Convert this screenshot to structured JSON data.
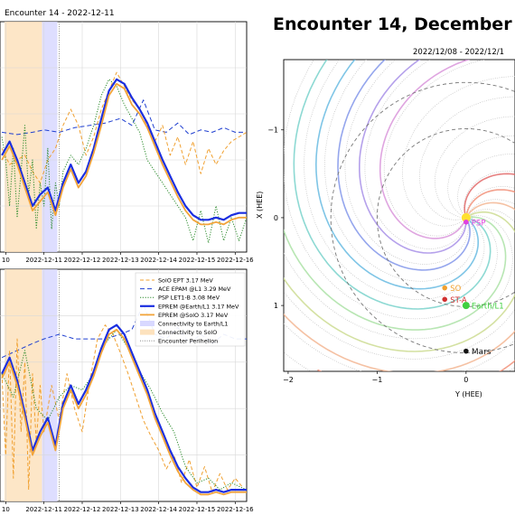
{
  "figure_title": "Encounter 14, December",
  "panel_top": {
    "title": "Encounter 14 - 2022-12-11"
  },
  "orbit": {
    "title": "2022/12/08 - 2022/12/1",
    "xlabel": "Y (HEE)",
    "ylabel": "X (HEE)"
  },
  "colors": {
    "solo": "#f0a030",
    "ace": "#1f3fd0",
    "psp": "#2a8a2a",
    "eprem_earth": "#1a2ee0",
    "eprem_solo": "#f2a43a",
    "conn_earth": "#d8d8ff",
    "conn_solo": "#fde2bd"
  },
  "chart_data": [
    {
      "type": "line",
      "panel": "top",
      "title": "Encounter 14 - 2022-12-11",
      "x_tick_labels": [
        "10",
        "2022-12-11",
        "2022-12-12",
        "2022-12-13",
        "2022-12-14",
        "2022-12-15",
        "2022-12-16"
      ],
      "x_ticks": [
        10.0,
        11.0,
        12.0,
        13.0,
        14.0,
        15.0,
        16.0
      ],
      "xlim": [
        9.85,
        16.3
      ],
      "ylim": [
        0,
        1
      ],
      "grid": true,
      "shaded_regions": [
        {
          "name": "Connectivity to SolO",
          "x": [
            9.97,
            10.95
          ]
        },
        {
          "name": "Connectivity to Earth/L1",
          "x": [
            10.95,
            11.35
          ]
        }
      ],
      "vlines": [
        {
          "name": "Encounter Perihelion",
          "x": 11.4
        }
      ],
      "series": [
        {
          "name": "ACE EPAM @L1 3.29 MeV",
          "style": "dashed",
          "x": [
            9.9,
            10.3,
            10.7,
            11.0,
            11.4,
            11.8,
            12.2,
            12.6,
            13.0,
            13.3,
            13.6,
            13.9,
            14.2,
            14.5,
            14.8,
            15.1,
            15.4,
            15.7,
            16.0,
            16.3
          ],
          "y": [
            0.52,
            0.51,
            0.52,
            0.53,
            0.52,
            0.54,
            0.55,
            0.56,
            0.58,
            0.55,
            0.66,
            0.53,
            0.52,
            0.56,
            0.51,
            0.53,
            0.52,
            0.54,
            0.52,
            0.52
          ]
        },
        {
          "name": "SolO EPT 3.17 MeV",
          "style": "dashed",
          "x": [
            9.9,
            10.1,
            10.3,
            10.5,
            10.7,
            10.9,
            11.1,
            11.3,
            11.5,
            11.7,
            11.9,
            12.1,
            12.3,
            12.5,
            12.7,
            12.9,
            13.1,
            13.3,
            13.5,
            13.7,
            13.9,
            14.1,
            14.3,
            14.5,
            14.7,
            14.9,
            15.1,
            15.3,
            15.5,
            15.7,
            15.9,
            16.1,
            16.3
          ],
          "y": [
            0.45,
            0.38,
            0.4,
            0.42,
            0.35,
            0.3,
            0.4,
            0.45,
            0.55,
            0.62,
            0.55,
            0.42,
            0.5,
            0.62,
            0.7,
            0.78,
            0.72,
            0.66,
            0.62,
            0.55,
            0.48,
            0.55,
            0.42,
            0.5,
            0.38,
            0.48,
            0.34,
            0.45,
            0.38,
            0.44,
            0.48,
            0.5,
            0.52
          ]
        },
        {
          "name": "PSP LET1-B 3.08 MeV",
          "style": "dotted",
          "x": [
            9.9,
            10.0,
            10.1,
            10.2,
            10.3,
            10.4,
            10.5,
            10.6,
            10.7,
            10.8,
            10.9,
            11.0,
            11.1,
            11.2,
            11.3,
            11.4,
            11.5,
            11.7,
            11.9,
            12.1,
            12.3,
            12.5,
            12.7,
            12.9,
            13.1,
            13.3,
            13.5,
            13.7,
            13.9,
            14.1,
            14.3,
            14.5,
            14.7,
            14.9,
            15.1,
            15.3,
            15.5,
            15.7,
            15.9,
            16.1,
            16.3
          ],
          "y": [
            0.5,
            0.4,
            0.2,
            0.45,
            0.15,
            0.35,
            0.55,
            0.25,
            0.4,
            0.1,
            0.3,
            0.2,
            0.45,
            0.1,
            0.3,
            0.2,
            0.35,
            0.42,
            0.38,
            0.45,
            0.55,
            0.68,
            0.75,
            0.72,
            0.64,
            0.58,
            0.52,
            0.4,
            0.35,
            0.3,
            0.25,
            0.2,
            0.15,
            0.05,
            0.18,
            0.04,
            0.2,
            0.05,
            0.15,
            0.05,
            0.15
          ]
        },
        {
          "name": "EPREM @Earth/L1 3.17 MeV",
          "style": "solid",
          "x": [
            9.9,
            10.1,
            10.3,
            10.5,
            10.7,
            10.9,
            11.1,
            11.3,
            11.5,
            11.7,
            11.9,
            12.1,
            12.3,
            12.5,
            12.7,
            12.9,
            13.1,
            13.3,
            13.5,
            13.7,
            13.9,
            14.1,
            14.3,
            14.5,
            14.7,
            14.9,
            15.1,
            15.3,
            15.5,
            15.7,
            15.9,
            16.1,
            16.3
          ],
          "y": [
            0.42,
            0.48,
            0.4,
            0.3,
            0.2,
            0.25,
            0.28,
            0.18,
            0.3,
            0.38,
            0.3,
            0.35,
            0.45,
            0.58,
            0.7,
            0.75,
            0.73,
            0.67,
            0.62,
            0.56,
            0.48,
            0.4,
            0.33,
            0.26,
            0.2,
            0.16,
            0.14,
            0.14,
            0.15,
            0.14,
            0.16,
            0.17,
            0.17
          ]
        },
        {
          "name": "EPREM @SolO 3.17 MeV",
          "style": "solid",
          "x": [
            9.9,
            10.1,
            10.3,
            10.5,
            10.7,
            10.9,
            11.1,
            11.3,
            11.5,
            11.7,
            11.9,
            12.1,
            12.3,
            12.5,
            12.7,
            12.9,
            13.1,
            13.3,
            13.5,
            13.7,
            13.9,
            14.1,
            14.3,
            14.5,
            14.7,
            14.9,
            15.1,
            15.3,
            15.5,
            15.7,
            15.9,
            16.1,
            16.3
          ],
          "y": [
            0.4,
            0.46,
            0.38,
            0.28,
            0.18,
            0.22,
            0.26,
            0.16,
            0.28,
            0.36,
            0.28,
            0.33,
            0.43,
            0.55,
            0.68,
            0.73,
            0.71,
            0.64,
            0.6,
            0.54,
            0.46,
            0.38,
            0.31,
            0.24,
            0.18,
            0.14,
            0.12,
            0.12,
            0.13,
            0.12,
            0.14,
            0.15,
            0.15
          ]
        }
      ]
    },
    {
      "type": "line",
      "panel": "bottom",
      "x_tick_labels": [
        "10",
        "2022-12-11",
        "2022-12-12",
        "2022-12-13",
        "2022-12-14",
        "2022-12-15",
        "2022-12-16"
      ],
      "x_ticks": [
        10.0,
        11.0,
        12.0,
        13.0,
        14.0,
        15.0,
        16.0
      ],
      "xlim": [
        9.85,
        16.3
      ],
      "ylim": [
        0,
        1
      ],
      "grid": true,
      "legend_position": "top-right",
      "legend": [
        "SolO EPT 3.17 MeV",
        "ACE EPAM @L1 3.29 MeV",
        "PSP LET1-B 3.08 MeV",
        "EPREM @Earth/L1 3.17 MeV",
        "EPREM @SolO 3.17 MeV",
        "Connectivity to Earth/L1",
        "Connectivity to SolO",
        "Encounter Perihelion"
      ],
      "shaded_regions": [
        {
          "name": "Connectivity to SolO",
          "x": [
            9.97,
            10.95
          ]
        },
        {
          "name": "Connectivity to Earth/L1",
          "x": [
            10.95,
            11.35
          ]
        }
      ],
      "vlines": [
        {
          "name": "Encounter Perihelion",
          "x": 11.4
        }
      ],
      "series": [
        {
          "name": "ACE EPAM @L1 3.29 MeV",
          "style": "dashed",
          "x": [
            9.9,
            10.3,
            10.7,
            11.0,
            11.4,
            11.8,
            12.2,
            12.6,
            13.0,
            13.3,
            13.6,
            13.9,
            14.2,
            14.5,
            14.8,
            15.1,
            15.4,
            15.7,
            16.0,
            16.3
          ],
          "y": [
            0.62,
            0.65,
            0.68,
            0.7,
            0.72,
            0.7,
            0.7,
            0.7,
            0.72,
            0.74,
            0.85,
            0.72,
            0.7,
            0.75,
            0.68,
            0.72,
            0.68,
            0.72,
            0.7,
            0.7
          ]
        },
        {
          "name": "SolO EPT 3.17 MeV",
          "style": "dashed",
          "x": [
            9.9,
            10.0,
            10.1,
            10.2,
            10.3,
            10.4,
            10.5,
            10.6,
            10.7,
            10.8,
            10.9,
            11.0,
            11.2,
            11.4,
            11.6,
            11.8,
            12.0,
            12.2,
            12.4,
            12.6,
            12.8,
            13.0,
            13.2,
            13.4,
            13.6,
            13.8,
            14.0,
            14.2,
            14.4,
            14.6,
            14.8,
            15.0,
            15.2,
            15.4,
            15.6,
            15.8,
            16.0,
            16.2
          ],
          "y": [
            0.55,
            0.2,
            0.65,
            0.1,
            0.7,
            0.3,
            0.6,
            0.05,
            0.55,
            0.25,
            0.5,
            0.3,
            0.5,
            0.35,
            0.55,
            0.4,
            0.3,
            0.52,
            0.7,
            0.76,
            0.72,
            0.64,
            0.55,
            0.45,
            0.35,
            0.28,
            0.22,
            0.14,
            0.2,
            0.08,
            0.18,
            0.06,
            0.15,
            0.04,
            0.12,
            0.05,
            0.1,
            0.06
          ]
        },
        {
          "name": "PSP LET1-B 3.08 MeV",
          "style": "dotted",
          "x": [
            9.9,
            10.2,
            10.5,
            10.8,
            11.1,
            11.4,
            11.7,
            12.0,
            12.3,
            12.6,
            12.9,
            13.2,
            13.5,
            13.8,
            14.1,
            14.4,
            14.7,
            15.0,
            15.3,
            15.6,
            15.9,
            16.3
          ],
          "y": [
            0.55,
            0.45,
            0.65,
            0.4,
            0.35,
            0.45,
            0.5,
            0.48,
            0.55,
            0.68,
            0.74,
            0.66,
            0.56,
            0.48,
            0.38,
            0.3,
            0.15,
            0.08,
            0.1,
            0.05,
            0.08,
            0.05
          ]
        },
        {
          "name": "EPREM @Earth/L1 3.17 MeV",
          "style": "solid",
          "x": [
            9.9,
            10.1,
            10.3,
            10.5,
            10.7,
            10.9,
            11.1,
            11.3,
            11.5,
            11.7,
            11.9,
            12.1,
            12.3,
            12.5,
            12.7,
            12.9,
            13.1,
            13.3,
            13.5,
            13.7,
            13.9,
            14.1,
            14.3,
            14.5,
            14.7,
            14.9,
            15.1,
            15.3,
            15.5,
            15.7,
            15.9,
            16.1,
            16.3
          ],
          "y": [
            0.55,
            0.62,
            0.52,
            0.38,
            0.22,
            0.3,
            0.36,
            0.24,
            0.42,
            0.5,
            0.42,
            0.48,
            0.56,
            0.66,
            0.74,
            0.76,
            0.72,
            0.64,
            0.56,
            0.48,
            0.38,
            0.3,
            0.22,
            0.15,
            0.1,
            0.06,
            0.04,
            0.04,
            0.05,
            0.04,
            0.05,
            0.05,
            0.05
          ]
        },
        {
          "name": "EPREM @SolO 3.17 MeV",
          "style": "solid",
          "x": [
            9.9,
            10.1,
            10.3,
            10.5,
            10.7,
            10.9,
            11.1,
            11.3,
            11.5,
            11.7,
            11.9,
            12.1,
            12.3,
            12.5,
            12.7,
            12.9,
            13.1,
            13.3,
            13.5,
            13.7,
            13.9,
            14.1,
            14.3,
            14.5,
            14.7,
            14.9,
            15.1,
            15.3,
            15.5,
            15.7,
            15.9,
            16.1,
            16.3
          ],
          "y": [
            0.53,
            0.6,
            0.5,
            0.36,
            0.2,
            0.28,
            0.34,
            0.22,
            0.4,
            0.48,
            0.4,
            0.46,
            0.54,
            0.64,
            0.72,
            0.74,
            0.7,
            0.62,
            0.54,
            0.46,
            0.36,
            0.28,
            0.2,
            0.13,
            0.08,
            0.05,
            0.03,
            0.03,
            0.04,
            0.03,
            0.04,
            0.04,
            0.04
          ]
        }
      ]
    },
    {
      "type": "scatter",
      "panel": "orbit",
      "title": "2022/12/08 - 2022/12/1",
      "xlabel": "Y (HEE)",
      "ylabel": "X (HEE)",
      "xlim": [
        -2.05,
        0.55
      ],
      "ylim": [
        -1.8,
        1.75
      ],
      "y_inverted": true,
      "x_tick_labels": [
        "−2",
        "−1",
        "0"
      ],
      "x_ticks": [
        -2,
        -1,
        0
      ],
      "y_tick_labels": [
        "−1",
        "0",
        "1"
      ],
      "y_ticks": [
        -1,
        0,
        1
      ],
      "grid": false,
      "bodies": [
        {
          "name": "PSP",
          "y_hee": 0.0,
          "x_hee": 0.05,
          "color": "#e040e0"
        },
        {
          "name": "SO",
          "y_hee": -0.24,
          "x_hee": 0.8,
          "color": "#f0a030"
        },
        {
          "name": "ST-A",
          "y_hee": -0.24,
          "x_hee": 0.93,
          "color": "#d03030"
        },
        {
          "name": "Earth/L1",
          "y_hee": 0.0,
          "x_hee": 1.0,
          "color": "#40d040"
        },
        {
          "name": "Mars",
          "y_hee": 0.0,
          "x_hee": 1.52,
          "color": "#111111"
        }
      ]
    }
  ]
}
